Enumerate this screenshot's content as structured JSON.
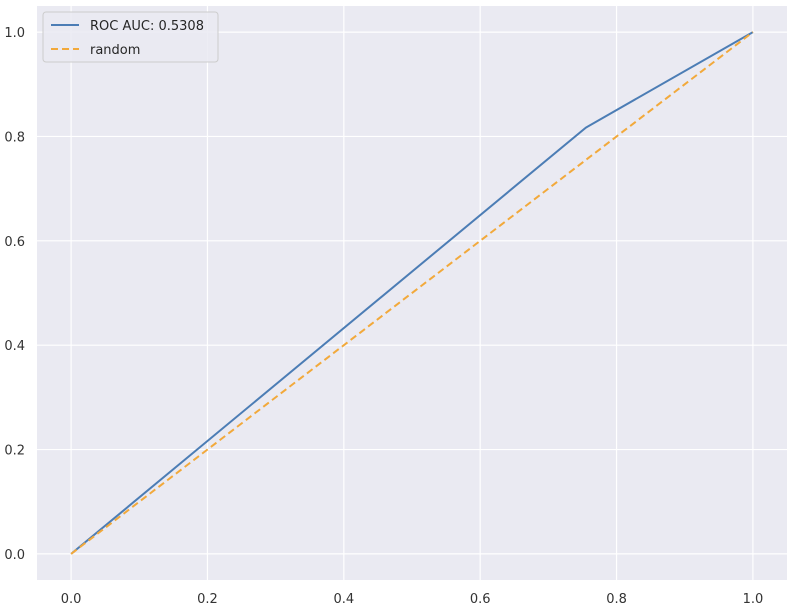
{
  "chart_data": {
    "type": "line",
    "title": "",
    "xlabel": "",
    "ylabel": "",
    "xlim": [
      -0.05,
      1.05
    ],
    "ylim": [
      -0.05,
      1.05
    ],
    "grid": true,
    "legend_position": "top-left",
    "x_ticks": [
      "0.0",
      "0.2",
      "0.4",
      "0.6",
      "0.8",
      "1.0"
    ],
    "y_ticks": [
      "0.0",
      "0.2",
      "0.4",
      "0.6",
      "0.8",
      "1.0"
    ],
    "series": [
      {
        "name": "ROC AUC: 0.5308",
        "x": [
          0.0,
          0.755,
          1.0
        ],
        "y": [
          0.0,
          0.817,
          1.0
        ],
        "color": "#4c7db5",
        "style": "solid"
      },
      {
        "name": "random",
        "x": [
          0.0,
          1.0
        ],
        "y": [
          0.0,
          1.0
        ],
        "color": "#f2a93b",
        "style": "dashed"
      }
    ],
    "background_color": "#eaeaf2",
    "grid_color": "#ffffff"
  }
}
